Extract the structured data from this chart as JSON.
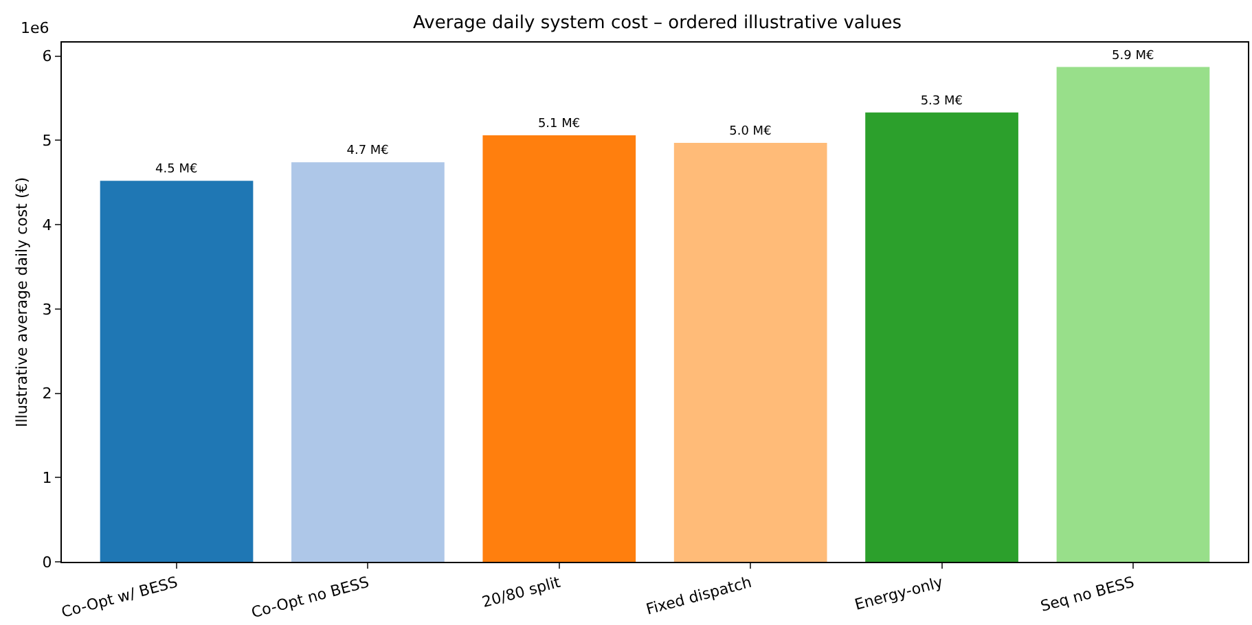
{
  "chart_data": {
    "type": "bar",
    "title": "Average daily system cost – ordered illustrative values",
    "ylabel": "Illustrative average daily cost (€)",
    "categories": [
      "Co-Opt w/ BESS",
      "Co-Opt no BESS",
      "20/80 split",
      "Fixed dispatch",
      "Energy-only",
      "Seq no BESS"
    ],
    "values": [
      4.52,
      4.74,
      5.06,
      4.97,
      5.33,
      5.87
    ],
    "colors": [
      "#1f77b4",
      "#aec7e8",
      "#ff7f0e",
      "#ffbb78",
      "#2ca02c",
      "#98df8a"
    ],
    "value_labels": [
      "4.5 M€",
      "4.7 M€",
      "5.1 M€",
      "5.0 M€",
      "5.3 M€",
      "5.9 M€"
    ],
    "ylim": [
      0,
      6.16
    ],
    "yticks": [
      0,
      1,
      2,
      3,
      4,
      5,
      6
    ],
    "annotations": [
      "1e6"
    ],
    "grid": false
  }
}
